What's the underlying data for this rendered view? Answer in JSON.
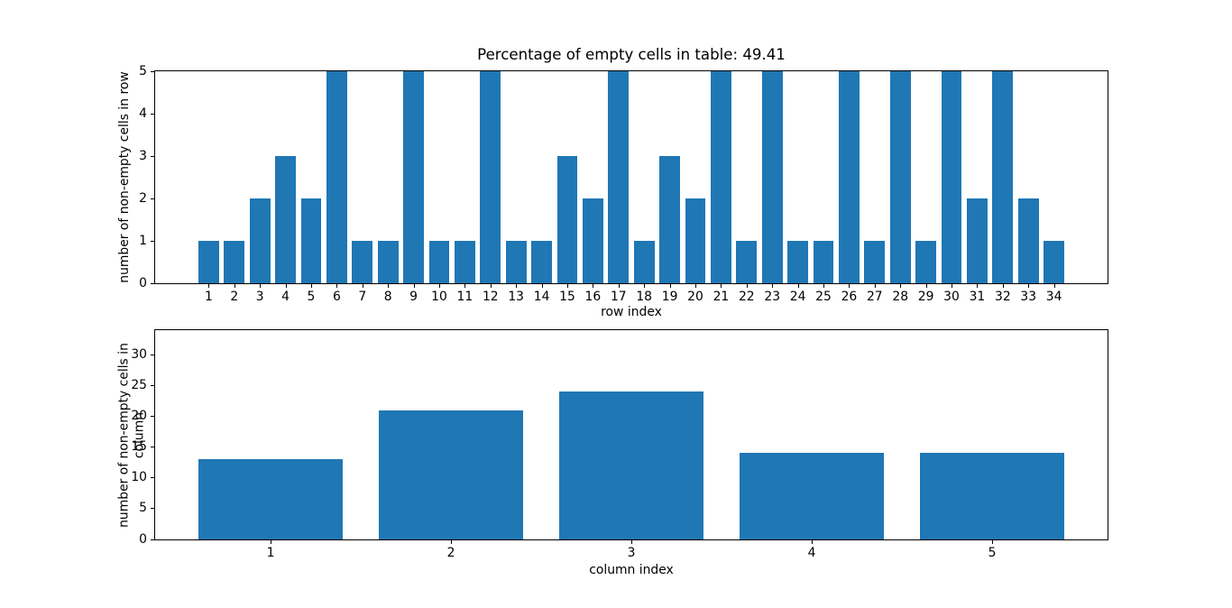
{
  "figure": {
    "background": "#ffffff",
    "bar_color": "#1f77b4",
    "axis_color": "#000000"
  },
  "chart_data": [
    {
      "type": "bar",
      "title": "Percentage of empty cells in table: 49.41",
      "xlabel": "row index",
      "ylabel": "number of non-empty cells in row",
      "categories": [
        1,
        2,
        3,
        4,
        5,
        6,
        7,
        8,
        9,
        10,
        11,
        12,
        13,
        14,
        15,
        16,
        17,
        18,
        19,
        20,
        21,
        22,
        23,
        24,
        25,
        26,
        27,
        28,
        29,
        30,
        31,
        32,
        33,
        34
      ],
      "values": [
        1,
        1,
        2,
        3,
        2,
        5,
        1,
        1,
        5,
        1,
        1,
        5,
        1,
        1,
        3,
        2,
        5,
        1,
        3,
        2,
        5,
        1,
        5,
        1,
        1,
        5,
        1,
        5,
        1,
        5,
        2,
        5,
        2,
        1
      ],
      "ylim": [
        0,
        5
      ],
      "yticks": [
        0,
        1,
        2,
        3,
        4,
        5
      ],
      "grid": false,
      "legend": "none"
    },
    {
      "type": "bar",
      "title": "",
      "xlabel": "column index",
      "ylabel": "number of non-empty cells in column",
      "categories": [
        1,
        2,
        3,
        4,
        5
      ],
      "values": [
        13,
        21,
        24,
        14,
        14
      ],
      "ylim": [
        0,
        34
      ],
      "yticks": [
        0,
        5,
        10,
        15,
        20,
        25,
        30
      ],
      "grid": false,
      "legend": "none"
    }
  ]
}
